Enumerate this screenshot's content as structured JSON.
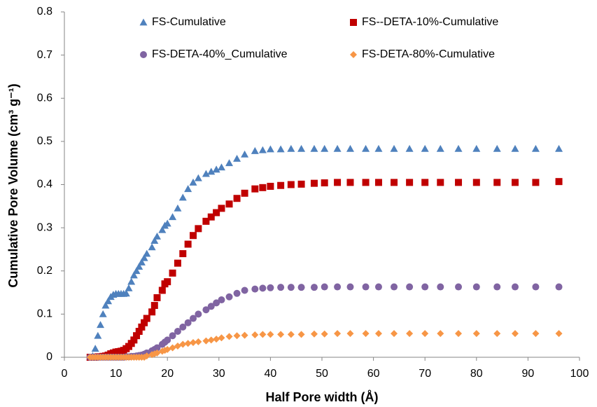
{
  "chart_data": {
    "type": "scatter",
    "x_label": "Half Pore width (Å)",
    "y_label": "Cumulative Pore Volume (cm³ g⁻¹)",
    "x": [
      5,
      5.5,
      6,
      6.5,
      7,
      7.5,
      8,
      8.5,
      9,
      9.5,
      10,
      10.5,
      11,
      11.5,
      12,
      12.5,
      13,
      13.5,
      14,
      14.5,
      15,
      15.5,
      16,
      17,
      17.5,
      18,
      19,
      19.5,
      20,
      21,
      22,
      23,
      24,
      25,
      26,
      27.5,
      28.5,
      29.5,
      30.5,
      32,
      33.5,
      35,
      37,
      38.5,
      40,
      42,
      44,
      46,
      48.5,
      50.5,
      53,
      55.5,
      58.5,
      61,
      64,
      67,
      70,
      73,
      76.5,
      80,
      84,
      87.5,
      91.5,
      96
    ],
    "series": [
      {
        "name": "FS-Cumulative",
        "color": "#4f81bd",
        "marker": "triangle",
        "values": [
          0,
          0.003,
          0.02,
          0.05,
          0.075,
          0.1,
          0.12,
          0.13,
          0.14,
          0.145,
          0.147,
          0.147,
          0.147,
          0.147,
          0.148,
          0.16,
          0.175,
          0.19,
          0.2,
          0.21,
          0.22,
          0.23,
          0.24,
          0.255,
          0.27,
          0.28,
          0.295,
          0.305,
          0.31,
          0.325,
          0.345,
          0.37,
          0.39,
          0.405,
          0.415,
          0.425,
          0.43,
          0.435,
          0.44,
          0.45,
          0.46,
          0.47,
          0.478,
          0.48,
          0.482,
          0.482,
          0.483,
          0.483,
          0.483,
          0.483,
          0.483,
          0.483,
          0.483,
          0.483,
          0.483,
          0.483,
          0.483,
          0.483,
          0.483,
          0.483,
          0.483,
          0.483,
          0.483,
          0.483
        ]
      },
      {
        "name": "FS--DETA-10%-Cumulative",
        "color": "#c00000",
        "marker": "square",
        "values": [
          0,
          0,
          0,
          0.001,
          0.001,
          0.002,
          0.003,
          0.005,
          0.008,
          0.01,
          0.012,
          0.013,
          0.014,
          0.016,
          0.02,
          0.025,
          0.032,
          0.04,
          0.05,
          0.06,
          0.07,
          0.08,
          0.09,
          0.105,
          0.12,
          0.138,
          0.155,
          0.17,
          0.175,
          0.195,
          0.218,
          0.24,
          0.262,
          0.282,
          0.298,
          0.315,
          0.325,
          0.335,
          0.345,
          0.355,
          0.368,
          0.38,
          0.39,
          0.393,
          0.396,
          0.398,
          0.4,
          0.401,
          0.403,
          0.404,
          0.405,
          0.405,
          0.405,
          0.405,
          0.405,
          0.405,
          0.405,
          0.405,
          0.405,
          0.405,
          0.405,
          0.405,
          0.405,
          0.407
        ]
      },
      {
        "name": "FS-DETA-40%_Cumulative",
        "color": "#8064a2",
        "marker": "circle",
        "values": [
          0,
          0,
          0,
          0,
          0,
          0,
          0,
          0,
          0,
          0,
          0,
          0,
          0,
          0,
          0.001,
          0.001,
          0.002,
          0.002,
          0.003,
          0.004,
          0.005,
          0.007,
          0.01,
          0.015,
          0.018,
          0.022,
          0.03,
          0.035,
          0.04,
          0.05,
          0.06,
          0.07,
          0.08,
          0.09,
          0.1,
          0.11,
          0.118,
          0.126,
          0.133,
          0.14,
          0.148,
          0.155,
          0.158,
          0.16,
          0.161,
          0.162,
          0.162,
          0.162,
          0.162,
          0.163,
          0.163,
          0.163,
          0.163,
          0.163,
          0.163,
          0.163,
          0.163,
          0.163,
          0.163,
          0.163,
          0.163,
          0.163,
          0.163,
          0.163
        ]
      },
      {
        "name": "FS-DETA-80%-Cumulative",
        "color": "#f79646",
        "marker": "diamond",
        "values": [
          0,
          0,
          0,
          0,
          0,
          0,
          0,
          0,
          0,
          0,
          0,
          0,
          0,
          0,
          0,
          0,
          0,
          0,
          0,
          0,
          0,
          0,
          0.003,
          0.006,
          0.008,
          0.01,
          0.014,
          0.016,
          0.018,
          0.022,
          0.026,
          0.03,
          0.032,
          0.034,
          0.036,
          0.038,
          0.04,
          0.042,
          0.045,
          0.048,
          0.05,
          0.051,
          0.052,
          0.053,
          0.053,
          0.053,
          0.053,
          0.053,
          0.054,
          0.054,
          0.055,
          0.055,
          0.055,
          0.055,
          0.055,
          0.055,
          0.055,
          0.055,
          0.055,
          0.055,
          0.055,
          0.055,
          0.055,
          0.055
        ]
      }
    ],
    "xlim": [
      0,
      100
    ],
    "xticks": [
      0,
      10,
      20,
      30,
      40,
      50,
      60,
      70,
      80,
      90,
      100
    ],
    "ylim": [
      0,
      0.8
    ],
    "yticks": [
      0,
      0.1,
      0.2,
      0.3,
      0.4,
      0.5,
      0.6,
      0.7,
      0.8
    ]
  }
}
